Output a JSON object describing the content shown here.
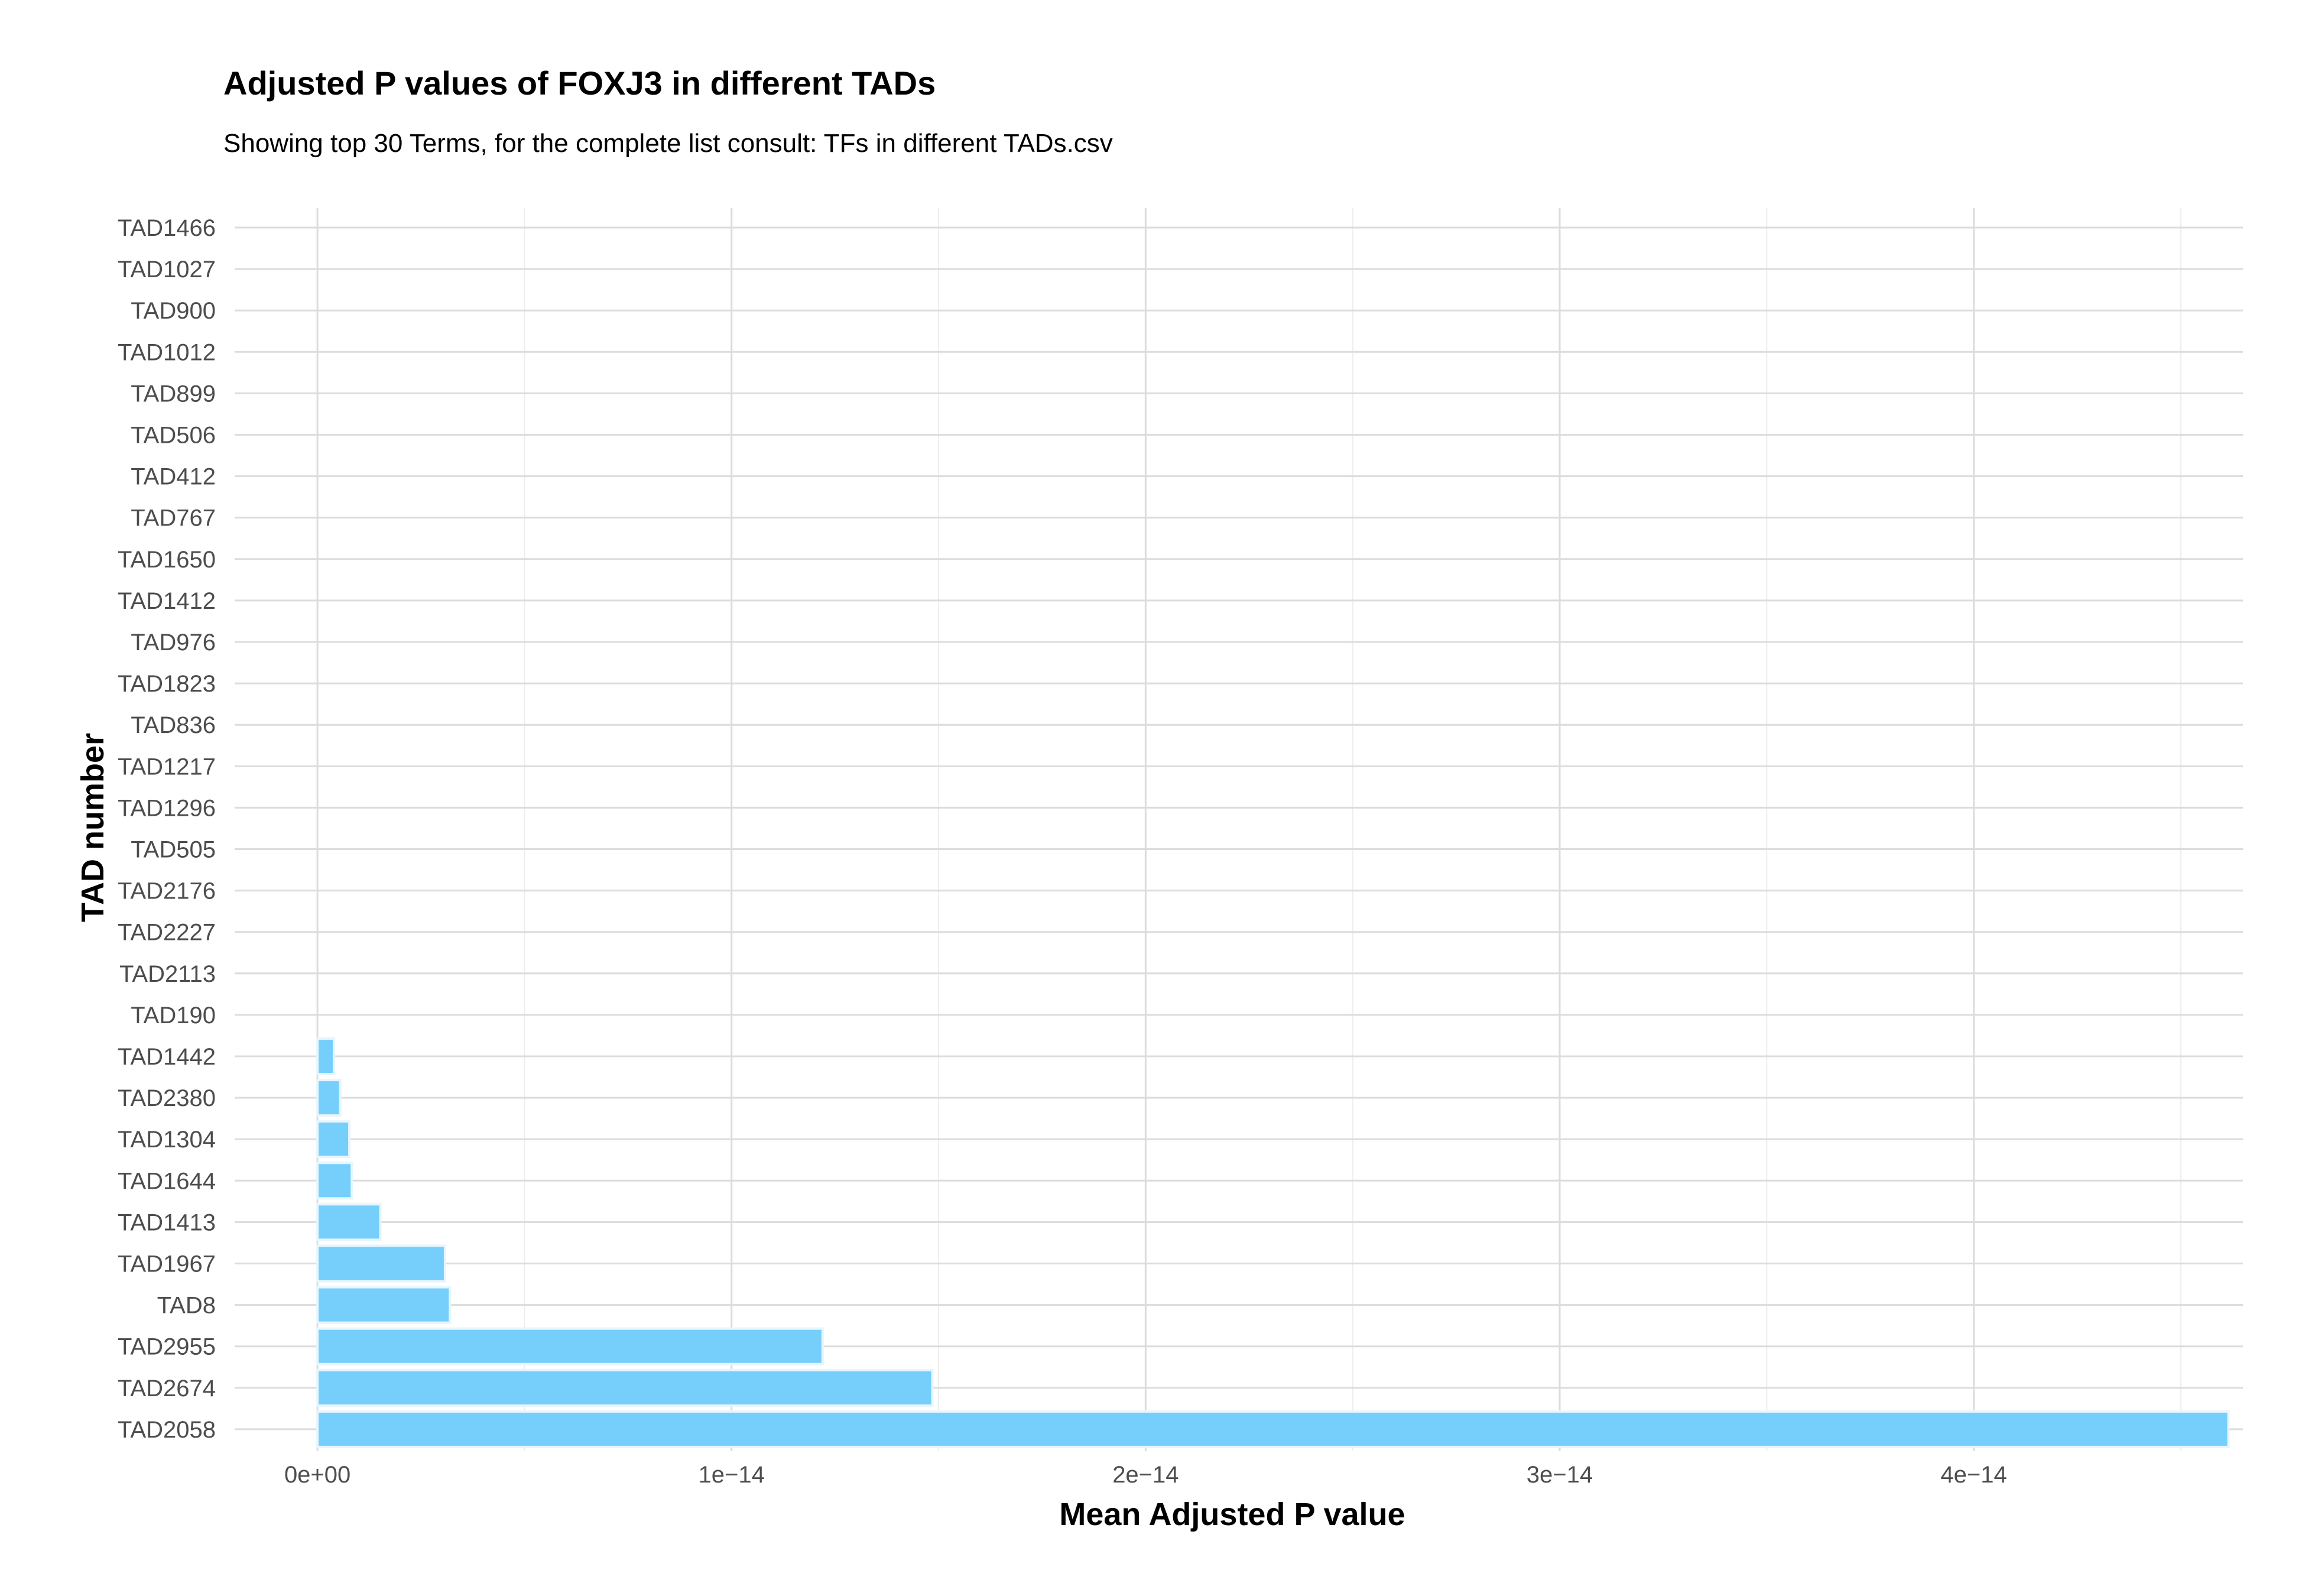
{
  "chart_data": {
    "type": "bar",
    "orientation": "horizontal",
    "title": "Adjusted P values of FOXJ3 in different TADs",
    "subtitle": "Showing top 30 Terms, for the complete list consult: TFs in different TADs.csv",
    "xlabel": "Mean Adjusted P value",
    "ylabel": "TAD number",
    "xlim": [
      -2e-15,
      4.65e-14
    ],
    "x_ticks": [
      0,
      1e-14,
      2e-14,
      3e-14,
      4e-14
    ],
    "x_tick_labels": [
      "0e+00",
      "1e−14",
      "2e−14",
      "3e−14",
      "4e−14"
    ],
    "grid": true,
    "bar_color": "#76cffa",
    "categories": [
      "TAD1466",
      "TAD1027",
      "TAD900",
      "TAD1012",
      "TAD899",
      "TAD506",
      "TAD412",
      "TAD767",
      "TAD1650",
      "TAD1412",
      "TAD976",
      "TAD1823",
      "TAD836",
      "TAD1217",
      "TAD1296",
      "TAD505",
      "TAD2176",
      "TAD2227",
      "TAD2113",
      "TAD190",
      "TAD1442",
      "TAD2380",
      "TAD1304",
      "TAD1644",
      "TAD1413",
      "TAD1967",
      "TAD8",
      "TAD2955",
      "TAD2674",
      "TAD2058"
    ],
    "values": [
      0,
      0,
      0,
      0,
      0,
      0,
      0,
      0,
      0,
      0,
      0,
      0,
      0,
      0,
      0,
      0,
      0,
      0,
      0,
      0,
      4e-16,
      5.5e-16,
      7.7e-16,
      8.3e-16,
      1.52e-15,
      3.08e-15,
      3.2e-15,
      1.22e-14,
      1.485e-14,
      4.615e-14
    ]
  }
}
